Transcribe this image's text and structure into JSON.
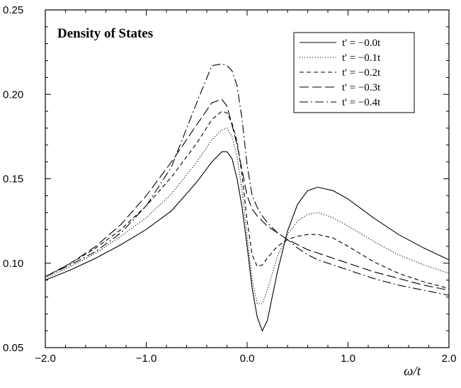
{
  "chart_data": {
    "type": "line",
    "title": "Density of States",
    "xlabel": "ω/t",
    "ylabel": "",
    "xlim": [
      -2.0,
      2.0
    ],
    "ylim": [
      0.05,
      0.25
    ],
    "x_ticks": [
      -2.0,
      -1.0,
      0.0,
      1.0,
      2.0
    ],
    "x_tick_labels": [
      "−2.0",
      "−1.0",
      "0.0",
      "1.0",
      "2.0"
    ],
    "y_ticks": [
      0.05,
      0.1,
      0.15,
      0.2,
      0.25
    ],
    "y_tick_labels": [
      "0.05",
      "0.10",
      "0.15",
      "0.20",
      "0.25"
    ],
    "grid": false,
    "legend_position": "top-right",
    "x": [
      -2.0,
      -1.75,
      -1.5,
      -1.25,
      -1.0,
      -0.75,
      -0.5,
      -0.35,
      -0.25,
      -0.2,
      -0.15,
      -0.1,
      -0.05,
      0.0,
      0.05,
      0.1,
      0.15,
      0.2,
      0.3,
      0.4,
      0.5,
      0.6,
      0.7,
      0.85,
      1.0,
      1.25,
      1.5,
      1.75,
      2.0
    ],
    "series": [
      {
        "name": "t' = −0.0t",
        "dash": "solid",
        "values": [
          0.09,
          0.096,
          0.103,
          0.111,
          0.12,
          0.131,
          0.148,
          0.16,
          0.166,
          0.166,
          0.162,
          0.15,
          0.133,
          0.11,
          0.085,
          0.068,
          0.06,
          0.066,
          0.095,
          0.119,
          0.135,
          0.143,
          0.145,
          0.143,
          0.138,
          0.127,
          0.117,
          0.109,
          0.102
        ]
      },
      {
        "name": "t' = −0.1t",
        "dash": "dotted",
        "values": [
          0.091,
          0.098,
          0.106,
          0.116,
          0.127,
          0.141,
          0.16,
          0.173,
          0.179,
          0.18,
          0.175,
          0.163,
          0.143,
          0.116,
          0.09,
          0.076,
          0.076,
          0.084,
          0.104,
          0.117,
          0.125,
          0.129,
          0.13,
          0.127,
          0.122,
          0.113,
          0.105,
          0.099,
          0.094
        ]
      },
      {
        "name": "t' = −0.2t",
        "dash": "dashed",
        "values": [
          0.092,
          0.1,
          0.109,
          0.12,
          0.134,
          0.151,
          0.171,
          0.185,
          0.19,
          0.189,
          0.183,
          0.172,
          0.152,
          0.125,
          0.105,
          0.098,
          0.099,
          0.103,
          0.11,
          0.114,
          0.116,
          0.117,
          0.117,
          0.115,
          0.11,
          0.101,
          0.094,
          0.089,
          0.085
        ]
      },
      {
        "name": "t' = −0.3t",
        "dash": "longdash",
        "values": [
          0.092,
          0.1,
          0.11,
          0.123,
          0.14,
          0.16,
          0.182,
          0.195,
          0.197,
          0.193,
          0.182,
          0.17,
          0.155,
          0.14,
          0.132,
          0.128,
          0.125,
          0.122,
          0.118,
          0.114,
          0.111,
          0.108,
          0.106,
          0.103,
          0.1,
          0.095,
          0.091,
          0.087,
          0.084
        ]
      },
      {
        "name": "t' = −0.4t",
        "dash": "dashdot",
        "values": [
          0.092,
          0.099,
          0.107,
          0.118,
          0.134,
          0.157,
          0.195,
          0.217,
          0.218,
          0.217,
          0.214,
          0.205,
          0.185,
          0.158,
          0.14,
          0.133,
          0.128,
          0.124,
          0.118,
          0.114,
          0.109,
          0.105,
          0.102,
          0.099,
          0.096,
          0.091,
          0.087,
          0.084,
          0.081
        ]
      }
    ]
  }
}
